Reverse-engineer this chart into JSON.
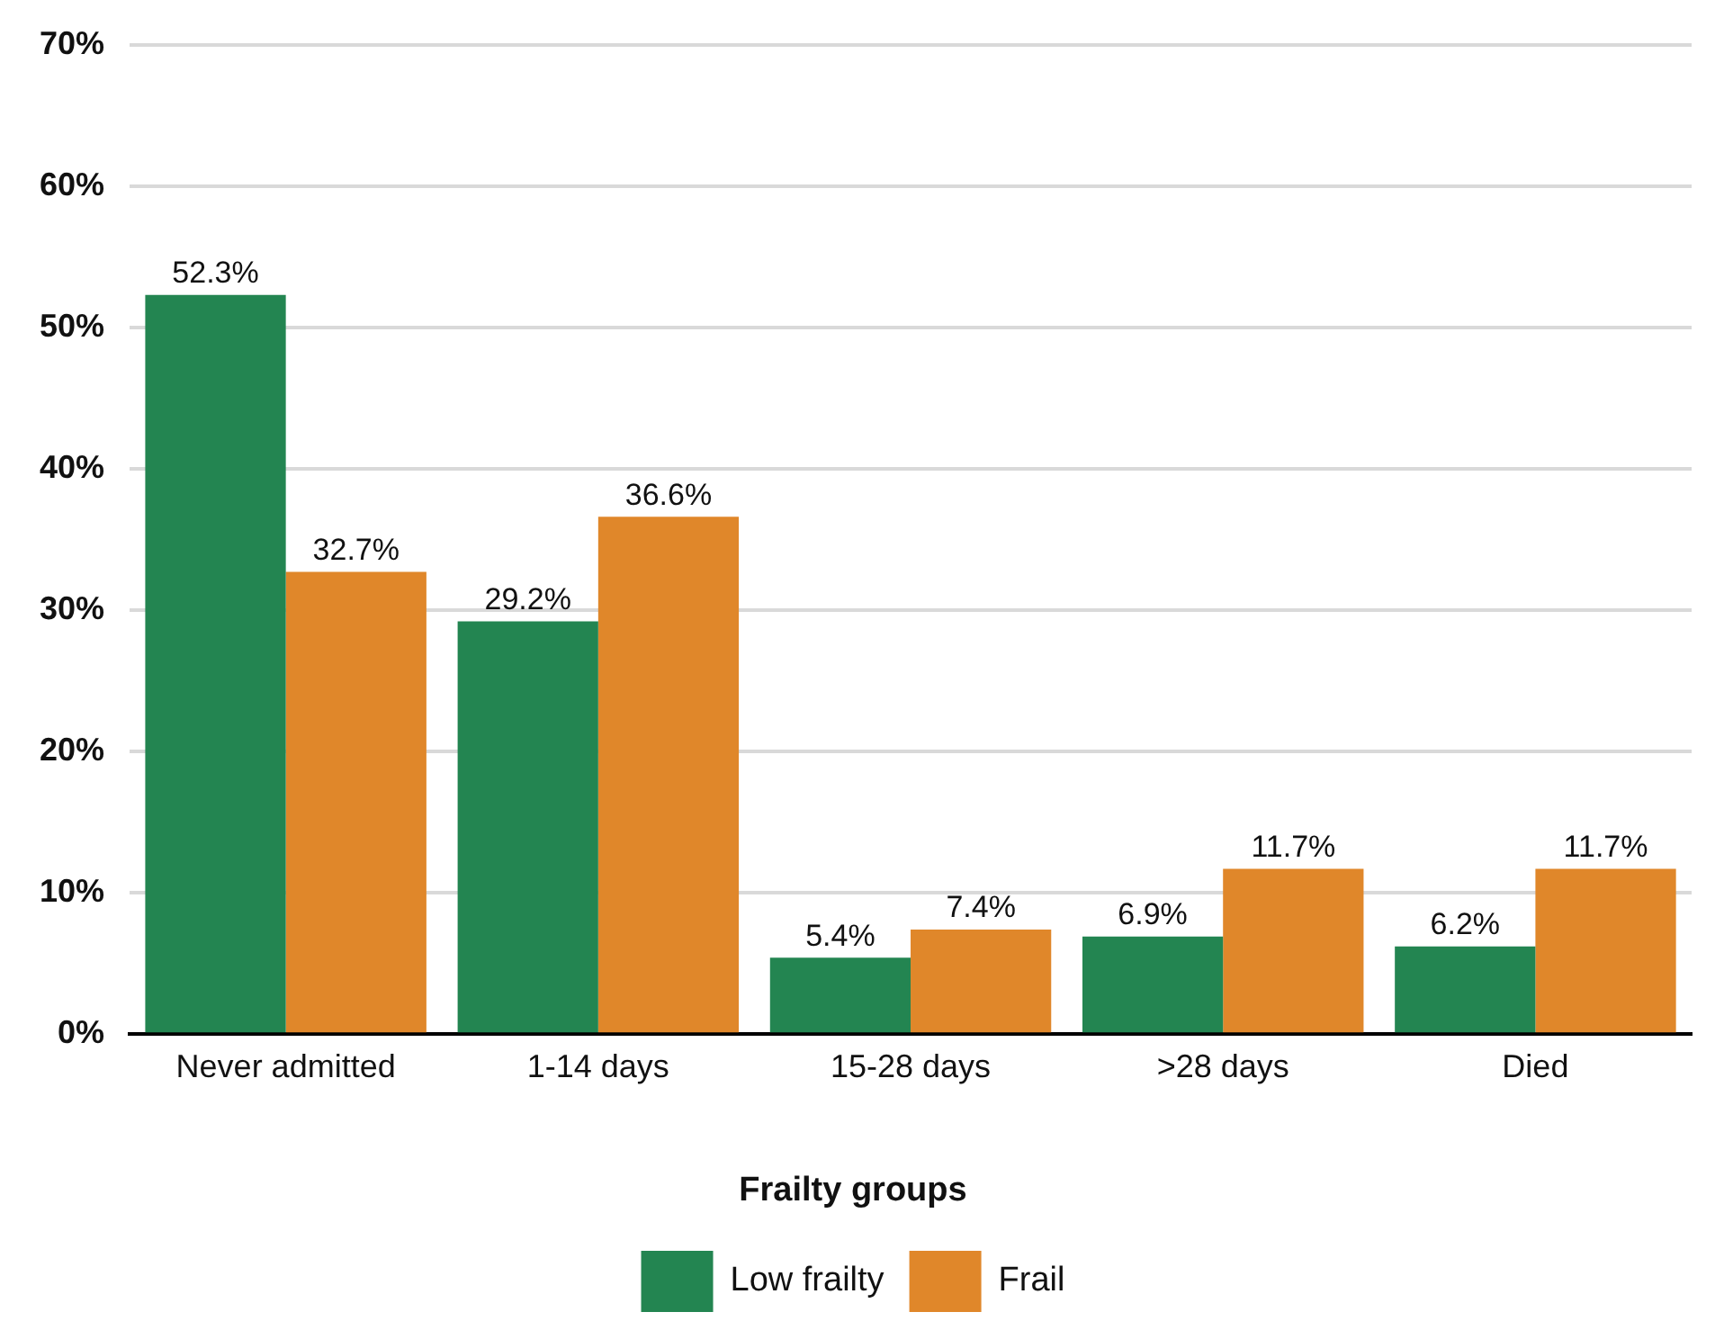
{
  "chart_data": {
    "type": "bar",
    "categories": [
      "Never admitted",
      "1-14 days",
      "15-28 days",
      ">28 days",
      "Died"
    ],
    "series": [
      {
        "name": "Low frailty",
        "color": "#238551",
        "values": [
          52.3,
          29.2,
          5.4,
          6.9,
          6.2
        ],
        "value_labels": [
          "52.3%",
          "29.2%",
          "5.4%",
          "6.9%",
          "6.2%"
        ]
      },
      {
        "name": "Frail",
        "color": "#e0872a",
        "values": [
          32.7,
          36.6,
          7.4,
          11.7,
          11.7
        ],
        "value_labels": [
          "32.7%",
          "36.6%",
          "7.4%",
          "11.7%",
          "11.7%"
        ]
      }
    ],
    "ylim": [
      0,
      70
    ],
    "yticks": [
      {
        "value": 0,
        "label": "0%"
      },
      {
        "value": 10,
        "label": "10%"
      },
      {
        "value": 20,
        "label": "20%"
      },
      {
        "value": 30,
        "label": "30%"
      },
      {
        "value": 40,
        "label": "40%"
      },
      {
        "value": 50,
        "label": "50%"
      },
      {
        "value": 60,
        "label": "60%"
      },
      {
        "value": 70,
        "label": "70%"
      }
    ],
    "grid": "y",
    "legend": "bottom",
    "legend_title": "Frailty groups"
  }
}
